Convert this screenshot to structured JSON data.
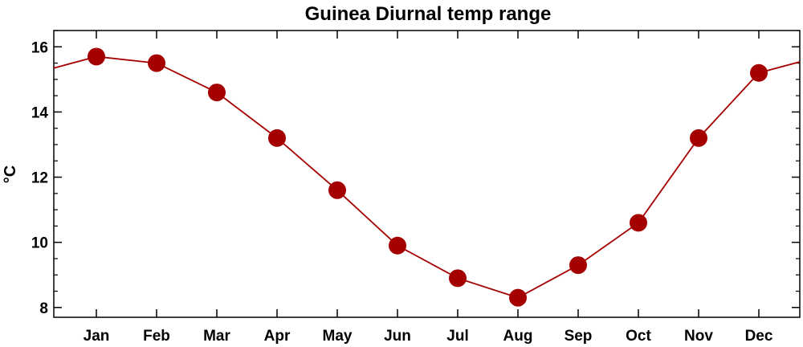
{
  "chart_data": {
    "type": "line",
    "title": "Guinea Diurnal temp range",
    "xlabel": "",
    "ylabel": "°C",
    "categories": [
      "Jan",
      "Feb",
      "Mar",
      "Apr",
      "May",
      "Jun",
      "Jul",
      "Aug",
      "Sep",
      "Oct",
      "Nov",
      "Dec"
    ],
    "values": [
      15.7,
      15.5,
      14.6,
      13.2,
      11.6,
      9.9,
      8.9,
      8.3,
      9.3,
      10.6,
      13.2,
      15.2
    ],
    "ylim": [
      7.7,
      16.5
    ],
    "yticks": [
      "8",
      "10",
      "12",
      "14",
      "16"
    ],
    "grid": false,
    "legend": "none",
    "line_color": "#a50000",
    "marker_color": "#a50000",
    "cyclic": true
  }
}
